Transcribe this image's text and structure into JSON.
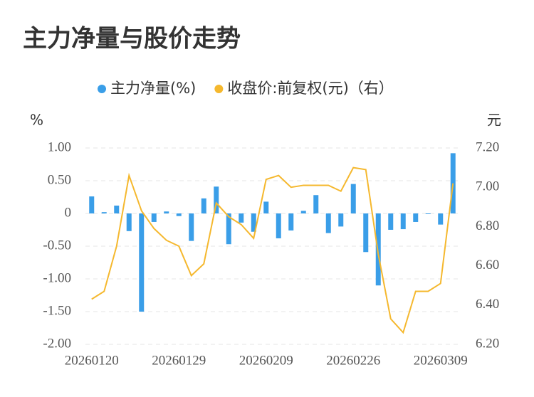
{
  "chart_data": {
    "type": "bar_line",
    "title": "主力净量与股价走势",
    "y_label": "%",
    "y2_label": "元",
    "categories": [
      "20260120",
      null,
      null,
      null,
      null,
      null,
      null,
      "20260129",
      null,
      null,
      null,
      null,
      null,
      null,
      "20260209",
      null,
      null,
      null,
      null,
      null,
      null,
      "20260226",
      null,
      null,
      null,
      null,
      null,
      null,
      "20260309",
      null
    ],
    "series": [
      {
        "name": "主力净量(%)",
        "color": "#3a9ee8",
        "type": "bar",
        "values": [
          0.26,
          0.02,
          0.12,
          -0.27,
          -1.5,
          -0.13,
          0.03,
          -0.04,
          -0.42,
          0.23,
          0.41,
          -0.47,
          -0.14,
          -0.28,
          0.18,
          -0.38,
          -0.26,
          0.04,
          0.28,
          -0.3,
          -0.2,
          0.45,
          -0.59,
          -1.1,
          -0.25,
          -0.24,
          -0.13,
          -0.01,
          -0.17,
          0.92
        ]
      },
      {
        "name": "收盘价:前复权(元)（右）",
        "color": "#f5b82e",
        "type": "line",
        "axis": "y2",
        "values": [
          6.43,
          6.47,
          6.7,
          7.06,
          6.88,
          6.79,
          6.73,
          6.7,
          6.55,
          6.61,
          6.92,
          6.85,
          6.81,
          6.74,
          7.04,
          7.06,
          7.0,
          7.01,
          7.01,
          7.01,
          6.98,
          7.1,
          7.09,
          6.66,
          6.33,
          6.26,
          6.47,
          6.47,
          6.51,
          7.02
        ]
      }
    ],
    "ylim": [
      -2,
      1
    ],
    "yticks": [
      {
        "value": 1,
        "label": "1.00"
      },
      {
        "value": 0.5,
        "label": "0.50"
      },
      0,
      {
        "value": -0.5,
        "label": "-0.50"
      },
      {
        "value": -1,
        "label": "-1.00"
      },
      {
        "value": -1.5,
        "label": "-1.50"
      },
      {
        "value": -2,
        "label": "-2.00"
      }
    ],
    "y2lim": [
      6.2,
      7.2
    ],
    "y2ticks": [
      {
        "value": 7.2,
        "label": "7.20"
      },
      {
        "value": 7.0,
        "label": "7.00"
      },
      {
        "value": 6.8,
        "label": "6.80"
      },
      {
        "value": 6.6,
        "label": "6.60"
      },
      {
        "value": 6.4,
        "label": "6.40"
      },
      {
        "value": 6.2,
        "label": "6.20"
      }
    ],
    "grid": true,
    "legend": "top"
  }
}
